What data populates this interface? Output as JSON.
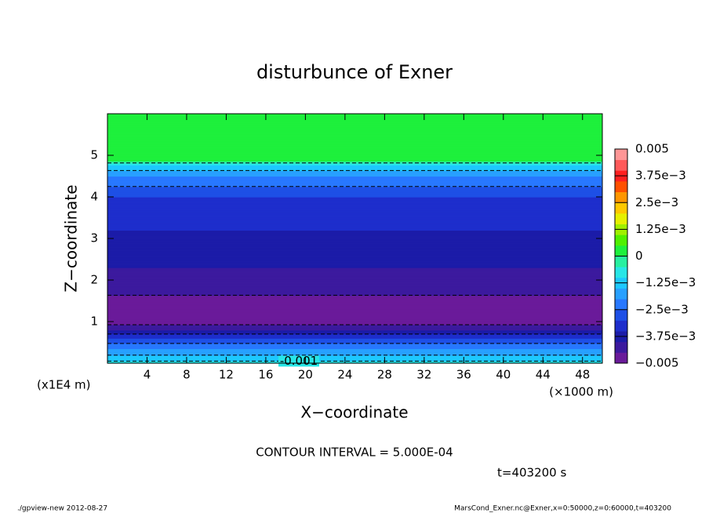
{
  "chart_data": {
    "type": "contour",
    "title": "disturbunce of Exner",
    "x_label": "X−coordinate",
    "y_label": "Z−coordinate",
    "x_unit": "(×1000 m)",
    "y_unit": "(x1E4 m)",
    "xlim": [
      0,
      50
    ],
    "xticks": [
      4,
      8,
      12,
      16,
      20,
      24,
      28,
      32,
      36,
      40,
      44,
      48
    ],
    "ylim": [
      0,
      6
    ],
    "yticks": [
      1,
      2,
      3,
      4,
      5
    ],
    "profile": {
      "z": [
        0,
        0.1,
        0.35,
        0.6,
        0.8,
        1.0,
        1.5,
        2.3,
        3.2,
        4.0,
        4.5,
        4.77,
        4.87,
        6
      ],
      "values": [
        -0.0008,
        -0.0012,
        -0.002,
        -0.003,
        -0.004,
        -0.0048,
        -0.0046,
        -0.004,
        -0.0035,
        -0.003,
        -0.002,
        -0.001,
        0.0001,
        0.0001
      ]
    },
    "contour_levels": [
      -0.0005,
      -0.001,
      -0.0015,
      -0.002,
      -0.0025,
      -0.003,
      -0.0035,
      -0.004,
      -0.0045
    ],
    "clim": [
      -0.005,
      0.005
    ],
    "colors": [
      "#6a1b9a",
      "#3c1a9e",
      "#1c1ca8",
      "#1e2ecc",
      "#1e50e6",
      "#2878ff",
      "#28a0ff",
      "#1ec8ff",
      "#28e6e6",
      "#28f0a0",
      "#1ef03c",
      "#50f000",
      "#a0f000",
      "#e6f000",
      "#ffc800",
      "#ff9600",
      "#ff5000",
      "#ff2020",
      "#ff5a5a",
      "#ff9696"
    ],
    "cticks": [
      {
        "value": 0.005,
        "label": "0.005"
      },
      {
        "value": 0.00375,
        "label": "3.75e−3"
      },
      {
        "value": 0.0025,
        "label": "2.5e−3"
      },
      {
        "value": 0.00125,
        "label": "1.25e−3"
      },
      {
        "value": 0,
        "label": "0"
      },
      {
        "value": -0.00125,
        "label": "−1.25e−3"
      },
      {
        "value": -0.0025,
        "label": "−2.5e−3"
      },
      {
        "value": -0.00375,
        "label": "−3.75e−3"
      },
      {
        "value": -0.005,
        "label": "−0.005"
      }
    ],
    "contour_interval": "CONTOUR INTERVAL = 5.000E-04",
    "time": "t=403200 s",
    "footer_left": "./gpview-new  2012-08-27",
    "footer_right": "MarsCond_Exner.nc@Exner,x=0:50000,z=0:60000,t=403200"
  }
}
